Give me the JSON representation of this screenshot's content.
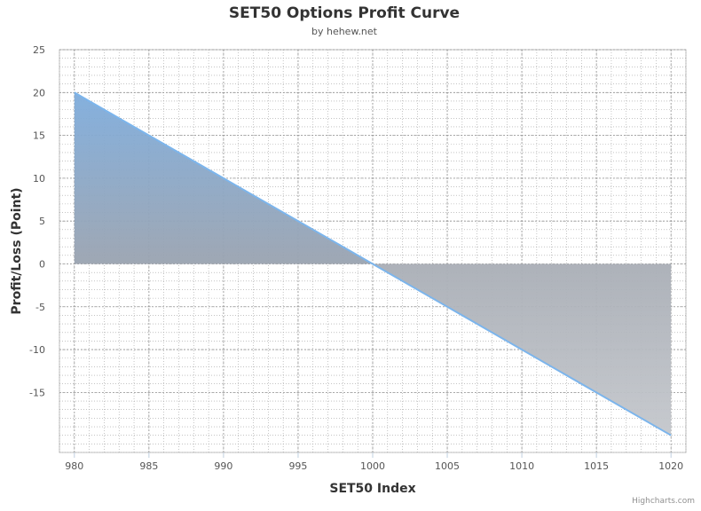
{
  "chart_data": {
    "type": "area",
    "title": "SET50 Options Profit Curve",
    "subtitle": "by hehew.net",
    "xlabel": "SET50 Index",
    "ylabel": "Profit/Loss (Point)",
    "xlim": [
      979,
      1021
    ],
    "ylim": [
      -22,
      25
    ],
    "x_ticks": [
      "980",
      "985",
      "990",
      "995",
      "1000",
      "1005",
      "1010",
      "1015",
      "1020"
    ],
    "y_ticks": [
      "25",
      "20",
      "15",
      "10",
      "5",
      "0",
      "-5",
      "-10",
      "-15"
    ],
    "grid": true,
    "series": [
      {
        "x": [
          980,
          1000,
          1020
        ],
        "y": [
          20,
          0,
          -20
        ]
      }
    ],
    "colors": {
      "line": "#7cb5ec",
      "positive_fill_top": "#7eacdc",
      "positive_fill_bottom": "#9aa3b0",
      "negative_fill": "#b4b8c0",
      "grid": "#a0a0a0"
    },
    "credits": "Highcharts.com"
  }
}
